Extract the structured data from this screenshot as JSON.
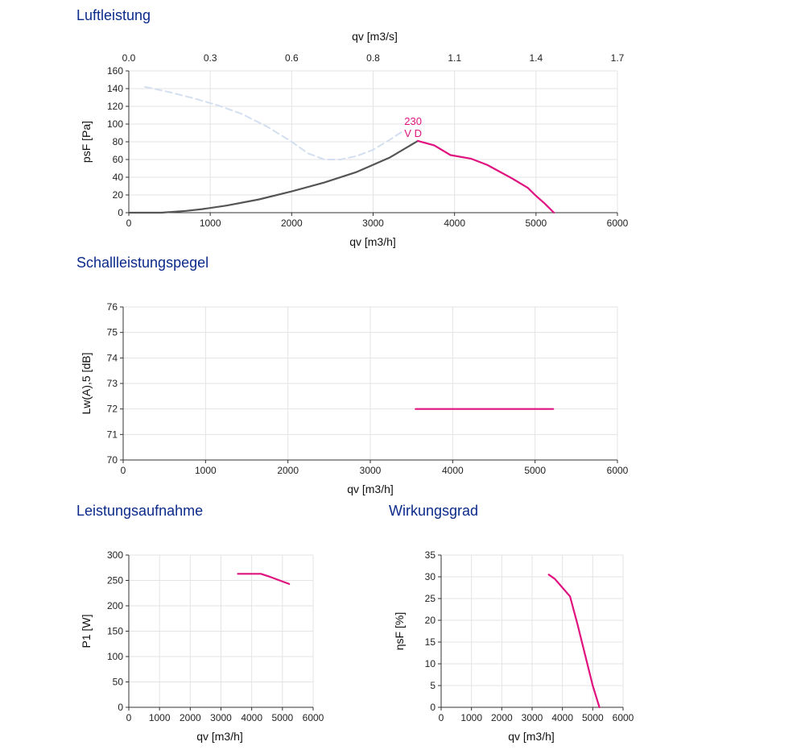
{
  "sections": {
    "airflow": "Luftleistung",
    "sound": "Schallleistungspegel",
    "power": "Leistungsaufnahme",
    "efficiency": "Wirkungsgrad"
  },
  "colors": {
    "primary": "#e0127f",
    "dark": "#555555",
    "dashed": "#d3dff0",
    "title": "#0b2a8a"
  },
  "chart_data": [
    {
      "id": "airflow",
      "type": "line",
      "title": "Luftleistung",
      "xlabel": "qv [m3/h]",
      "ylabel": "psF [Pa]",
      "x2label": "qv [m3/s]",
      "xlim": [
        0,
        6000
      ],
      "ylim": [
        0,
        160
      ],
      "xticks": [
        0,
        1000,
        2000,
        3000,
        4000,
        5000,
        6000
      ],
      "yticks": [
        0,
        20,
        40,
        60,
        80,
        100,
        120,
        140,
        160
      ],
      "x2ticks": [
        "0.0",
        "0.3",
        "0.6",
        "0.8",
        "1.1",
        "1.4",
        "1.7"
      ],
      "grid": true,
      "annotations": [
        "230",
        "V D"
      ],
      "series": [
        {
          "style": "dashed",
          "color": "#d3dff0",
          "points": [
            [
              200,
              142
            ],
            [
              500,
              136
            ],
            [
              800,
              129
            ],
            [
              1100,
              121
            ],
            [
              1400,
              111
            ],
            [
              1700,
              97
            ],
            [
              2000,
              80
            ],
            [
              2200,
              67
            ],
            [
              2400,
              60
            ],
            [
              2600,
              60
            ],
            [
              2800,
              64
            ],
            [
              3000,
              71
            ],
            [
              3200,
              82
            ],
            [
              3350,
              91
            ]
          ]
        },
        {
          "style": "solid",
          "color": "#555555",
          "points": [
            [
              0,
              0
            ],
            [
              400,
              0
            ],
            [
              700,
              2
            ],
            [
              900,
              4
            ],
            [
              1200,
              8
            ],
            [
              1600,
              15
            ],
            [
              2000,
              24
            ],
            [
              2400,
              34
            ],
            [
              2800,
              46
            ],
            [
              3200,
              62
            ],
            [
              3550,
              81
            ]
          ]
        },
        {
          "style": "solid",
          "color": "#e0127f",
          "points": [
            [
              3550,
              81
            ],
            [
              3750,
              76
            ],
            [
              3950,
              65
            ],
            [
              4200,
              61
            ],
            [
              4400,
              54
            ],
            [
              4700,
              39
            ],
            [
              4900,
              28
            ],
            [
              5000,
              19
            ],
            [
              5100,
              11
            ],
            [
              5220,
              0
            ]
          ]
        }
      ]
    },
    {
      "id": "sound",
      "type": "line",
      "title": "Schallleistungspegel",
      "xlabel": "qv [m3/h]",
      "ylabel": "Lw(A),5 [dB]",
      "xlim": [
        0,
        6000
      ],
      "ylim": [
        70,
        76
      ],
      "xticks": [
        0,
        1000,
        2000,
        3000,
        4000,
        5000,
        6000
      ],
      "yticks": [
        70,
        71,
        72,
        73,
        74,
        75,
        76
      ],
      "grid": true,
      "series": [
        {
          "style": "solid",
          "color": "#e0127f",
          "points": [
            [
              3550,
              72
            ],
            [
              5220,
              72
            ]
          ]
        }
      ]
    },
    {
      "id": "power",
      "type": "line",
      "title": "Leistungsaufnahme",
      "xlabel": "qv [m3/h]",
      "ylabel": "P1 [W]",
      "xlim": [
        0,
        6000
      ],
      "ylim": [
        0,
        300
      ],
      "xticks": [
        0,
        1000,
        2000,
        3000,
        4000,
        5000,
        6000
      ],
      "yticks": [
        0,
        50,
        100,
        150,
        200,
        250,
        300
      ],
      "grid": true,
      "series": [
        {
          "style": "solid",
          "color": "#e0127f",
          "points": [
            [
              3550,
              263
            ],
            [
              4300,
              263
            ],
            [
              4600,
              257
            ],
            [
              5220,
              243
            ]
          ]
        }
      ]
    },
    {
      "id": "efficiency",
      "type": "line",
      "title": "Wirkungsgrad",
      "xlabel": "qv [m3/h]",
      "ylabel": "ηsF [%]",
      "xlim": [
        0,
        6000
      ],
      "ylim": [
        0,
        35
      ],
      "xticks": [
        0,
        1000,
        2000,
        3000,
        4000,
        5000,
        6000
      ],
      "yticks": [
        0,
        5,
        10,
        15,
        20,
        25,
        30,
        35
      ],
      "grid": true,
      "series": [
        {
          "style": "solid",
          "color": "#e0127f",
          "points": [
            [
              3550,
              30.5
            ],
            [
              3750,
              29.5
            ],
            [
              4000,
              27.5
            ],
            [
              4250,
              25.5
            ],
            [
              4500,
              19
            ],
            [
              4750,
              12
            ],
            [
              5000,
              5
            ],
            [
              5220,
              0
            ]
          ]
        }
      ]
    }
  ]
}
